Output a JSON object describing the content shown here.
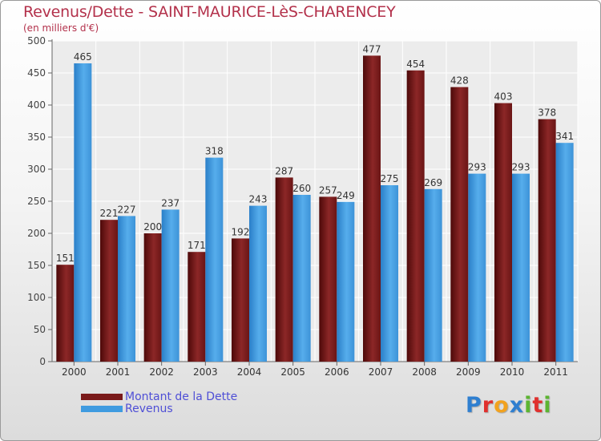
{
  "header": {
    "title": "Revenus/Dette - SAINT-MAURICE-LèS-CHARENCEY",
    "subtitle": "(en milliers d'€)"
  },
  "chart_data": {
    "type": "bar",
    "title": "Revenus/Dette - SAINT-MAURICE-LèS-CHARENCEY",
    "subtitle": "(en milliers d'€)",
    "xlabel": "",
    "ylabel": "",
    "categories": [
      "2000",
      "2001",
      "2002",
      "2003",
      "2004",
      "2005",
      "2006",
      "2007",
      "2008",
      "2009",
      "2010",
      "2011"
    ],
    "series": [
      {
        "name": "Montant de la Dette",
        "color": "#7a1a1a",
        "values": [
          151,
          221,
          200,
          171,
          192,
          287,
          257,
          477,
          454,
          428,
          403,
          378
        ]
      },
      {
        "name": "Revenus",
        "color": "#3f9be0",
        "values": [
          465,
          227,
          237,
          318,
          243,
          260,
          249,
          275,
          269,
          293,
          293,
          341
        ]
      }
    ],
    "ylim": [
      0,
      500
    ],
    "yticks": [
      0,
      50,
      100,
      150,
      200,
      250,
      300,
      350,
      400,
      450,
      500
    ],
    "grid": true,
    "legend_position": "bottom-left"
  },
  "legend": {
    "items": [
      {
        "label": "Montant de la Dette",
        "color": "#7a1a1a"
      },
      {
        "label": "Revenus",
        "color": "#3f9be0"
      }
    ]
  },
  "brand": {
    "letters": [
      {
        "char": "P",
        "color": "#2f7fd0"
      },
      {
        "char": "r",
        "color": "#e0302e"
      },
      {
        "char": "o",
        "color": "#f2a21e"
      },
      {
        "char": "x",
        "color": "#2f7fd0"
      },
      {
        "char": "i",
        "color": "#5cb531"
      },
      {
        "char": "t",
        "color": "#e0302e"
      },
      {
        "char": "i",
        "color": "#5cb531"
      }
    ]
  }
}
